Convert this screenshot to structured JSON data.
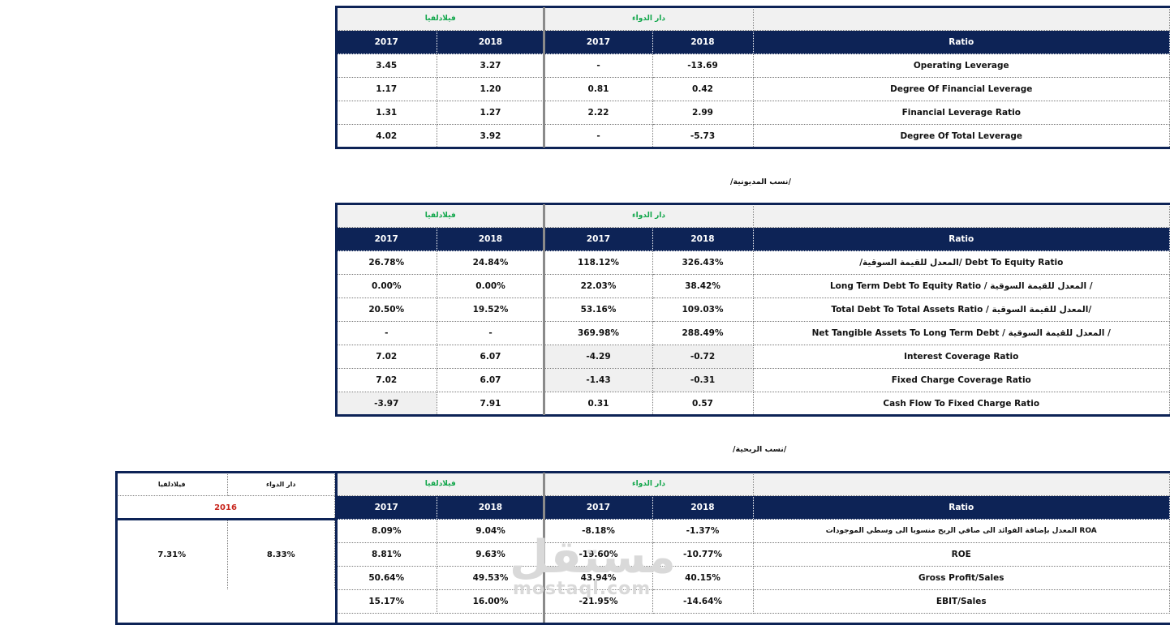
{
  "companies": {
    "a": "دار الدواء",
    "b": "فيلادلفيا"
  },
  "years": {
    "y2018": "2018",
    "y2017": "2017",
    "y2016": "2016"
  },
  "ratio_header": "Ratio",
  "sections": [
    {
      "title": ""
    },
    {
      "title": "/نسب المديونية/"
    },
    {
      "title": "/نسب الربحية/"
    }
  ],
  "leverage_rows": [
    {
      "label": "Operating Leverage",
      "a2018": "-13.69",
      "a2017": "-",
      "b2018": "3.27",
      "b2017": "3.45"
    },
    {
      "label": "Degree Of Financial Leverage",
      "a2018": "0.42",
      "a2017": "0.81",
      "b2018": "1.20",
      "b2017": "1.17"
    },
    {
      "label": "Financial Leverage Ratio",
      "a2018": "2.99",
      "a2017": "2.22",
      "b2018": "1.27",
      "b2017": "1.31"
    },
    {
      "label": "Degree Of Total Leverage",
      "a2018": "-5.73",
      "a2017": "-",
      "b2018": "3.92",
      "b2017": "4.02"
    }
  ],
  "debt_rows": [
    {
      "label": "/المعدل للقيمة السوقية/ Debt To Equity Ratio",
      "a2018": "326.43%",
      "a2017": "118.12%",
      "b2018": "24.84%",
      "b2017": "26.78%"
    },
    {
      "label": "Long Term Debt To Equity Ratio / المعدل للقيمة السوقية /",
      "a2018": "38.42%",
      "a2017": "22.03%",
      "b2018": "0.00%",
      "b2017": "0.00%"
    },
    {
      "label": "Total Debt To Total Assets Ratio / المعدل للقيمة السوقية/",
      "a2018": "109.03%",
      "a2017": "53.16%",
      "b2018": "19.52%",
      "b2017": "20.50%"
    },
    {
      "label": "Net Tangible Assets To Long Term Debt / المعدل للقيمة السوقية /",
      "a2018": "288.49%",
      "a2017": "369.98%",
      "b2018": "-",
      "b2017": "-"
    },
    {
      "label": "Interest Coverage Ratio",
      "a2018": "-0.72",
      "a2017": "-4.29",
      "b2018": "6.07",
      "b2017": "7.02"
    },
    {
      "label": "Fixed Charge Coverage Ratio",
      "a2018": "-0.31",
      "a2017": "-1.43",
      "b2018": "6.07",
      "b2017": "7.02"
    },
    {
      "label": "Cash Flow To Fixed Charge Ratio",
      "a2018": "0.57",
      "a2017": "0.31",
      "b2018": "7.91",
      "b2017": "-3.97"
    }
  ],
  "profit_rows": [
    {
      "label": "المعدل بإضافة الفوائد الى صافي الربح منسوبا الى وسطي الموجودات      ROA",
      "a2018": "-1.37%",
      "a2017": "-8.18%",
      "b2018": "9.04%",
      "b2017": "8.09%"
    },
    {
      "label": "ROE",
      "a2018": "-10.77%",
      "a2017": "-19.60%",
      "b2018": "9.63%",
      "b2017": "8.81%"
    },
    {
      "label": "Gross Profit/Sales",
      "a2018": "40.15%",
      "a2017": "43.94%",
      "b2018": "49.53%",
      "b2017": "50.64%"
    },
    {
      "label": "EBIT/Sales",
      "a2018": "-14.64%",
      "a2017": "-21.95%",
      "b2018": "16.00%",
      "b2017": "15.17%"
    }
  ],
  "side_table": {
    "company_b": "فيلادلفيا",
    "company_a": "دار الدواء",
    "year": "2016",
    "value_b": "7.31%",
    "value_a": "8.33%"
  },
  "watermark": {
    "arabic": "مستقل",
    "latin": "mostaql.com"
  }
}
